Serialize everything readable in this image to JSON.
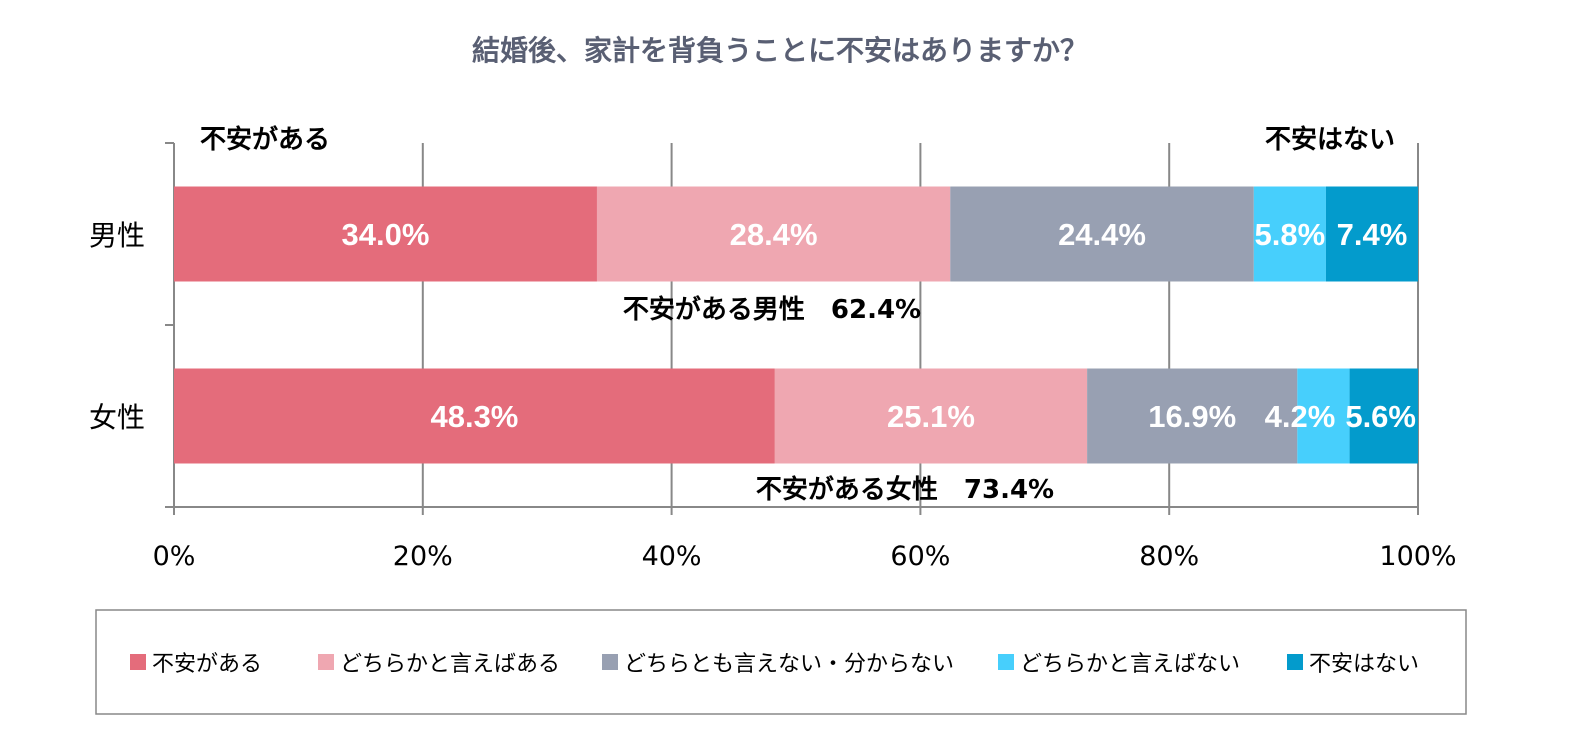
{
  "chart_data": {
    "type": "bar",
    "orientation": "horizontal",
    "stacked": true,
    "title": "結婚後、家計を背負うことに不安はありますか？",
    "categories": [
      "男性",
      "女性"
    ],
    "series": [
      {
        "name": "不安がある",
        "color": "#E46C7B",
        "values": [
          34.0,
          48.3
        ]
      },
      {
        "name": "どちらかと言えばある",
        "color": "#EFA7B1",
        "values": [
          28.4,
          25.1
        ]
      },
      {
        "name": "どちらとも言えない・分からない",
        "color": "#98A0B2",
        "values": [
          24.4,
          16.9
        ]
      },
      {
        "name": "どちらかと言えばない",
        "color": "#47CFFC",
        "values": [
          5.8,
          4.2
        ]
      },
      {
        "name": "不安はない",
        "color": "#039BCC",
        "values": [
          7.4,
          5.6
        ]
      }
    ],
    "data_labels": [
      [
        "34.0%",
        "28.4%",
        "24.4%",
        "5.8%",
        "7.4%"
      ],
      [
        "48.3%",
        "25.1%",
        "16.9%",
        "4.2%",
        "5.6%"
      ]
    ],
    "xlim": [
      0,
      100
    ],
    "x_ticks": [
      "0%",
      "20%",
      "40%",
      "60%",
      "80%",
      "100%"
    ],
    "grid": true,
    "legend_position": "bottom",
    "annotations": {
      "left_header": "不安がある",
      "right_header": "不安はない",
      "male_total": "不安がある男性　62.4%",
      "female_total": "不安がある女性　73.4%"
    }
  }
}
